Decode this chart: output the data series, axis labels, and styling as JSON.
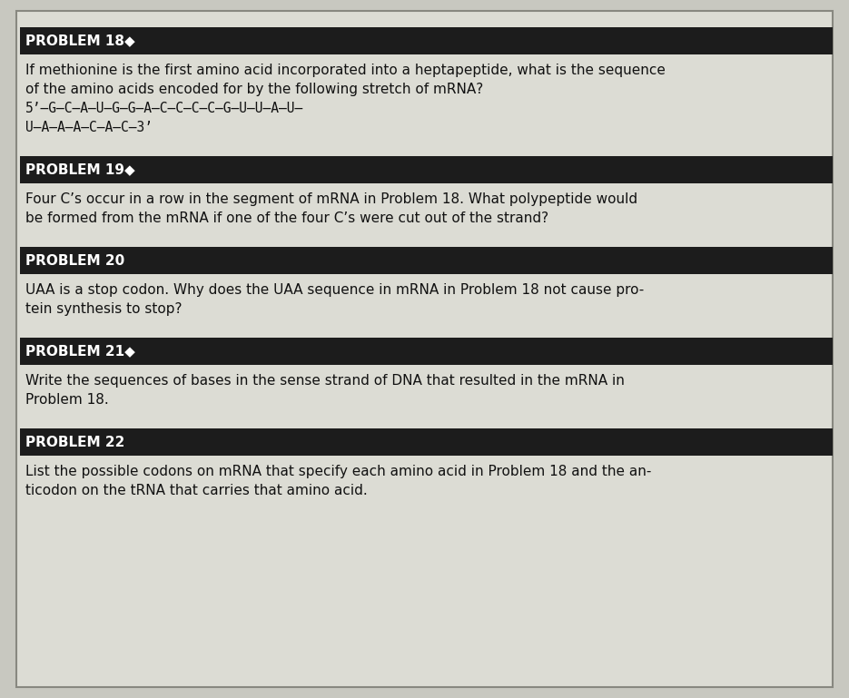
{
  "bg_color": "#c8c8c0",
  "panel_bg_color": "#dcdcd4",
  "header_bg_color": "#1c1c1c",
  "header_text_color": "#ffffff",
  "body_text_color": "#111111",
  "border_color": "#888880",
  "problems": [
    {
      "header": "PROBLEM 18◆",
      "body_lines": [
        {
          "text": "If methionine is the first amino acid incorporated into a heptapeptide, what is the sequence",
          "bold": false,
          "mono": false
        },
        {
          "text": "of the amino acids encoded for by the following stretch of mRNA?",
          "bold": false,
          "mono": false
        },
        {
          "text": "5’—G—C—A—U—G—G—A—C—C—C—C—G—U—U—A—U—",
          "bold": false,
          "mono": true
        },
        {
          "text": "U—A—A—A—C—A—C—3’",
          "bold": false,
          "mono": true
        }
      ]
    },
    {
      "header": "PROBLEM 19◆",
      "body_lines": [
        {
          "text": "Four C’s occur in a row in the segment of mRNA in Problem 18. What polypeptide would",
          "bold": false,
          "mono": false
        },
        {
          "text": "be formed from the mRNA if one of the four C’s were cut out of the strand?",
          "bold": false,
          "mono": false
        }
      ]
    },
    {
      "header": "PROBLEM 20",
      "body_lines": [
        {
          "text": "UAA is a stop codon. Why does the UAA sequence in mRNA in Problem 18 not cause pro-",
          "bold": false,
          "mono": false
        },
        {
          "text": "tein synthesis to stop?",
          "bold": false,
          "mono": false
        }
      ]
    },
    {
      "header": "PROBLEM 21◆",
      "body_lines": [
        {
          "text": "Write the sequences of bases in the sense strand of DNA that resulted in the mRNA in",
          "bold": false,
          "mono": false
        },
        {
          "text": "Problem 18.",
          "bold": false,
          "mono": false
        }
      ]
    },
    {
      "header": "PROBLEM 22",
      "body_lines": [
        {
          "text": "List the possible codons on mRNA that specify each amino acid in Problem 18 and the an-",
          "bold": false,
          "mono": false
        },
        {
          "text": "ticodon on the tRNA that carries that amino acid.",
          "bold": false,
          "mono": false
        }
      ]
    }
  ],
  "figsize": [
    9.35,
    7.69
  ],
  "dpi": 100,
  "header_fontsize": 11,
  "body_fontsize": 11,
  "mono_fontsize": 10.5
}
